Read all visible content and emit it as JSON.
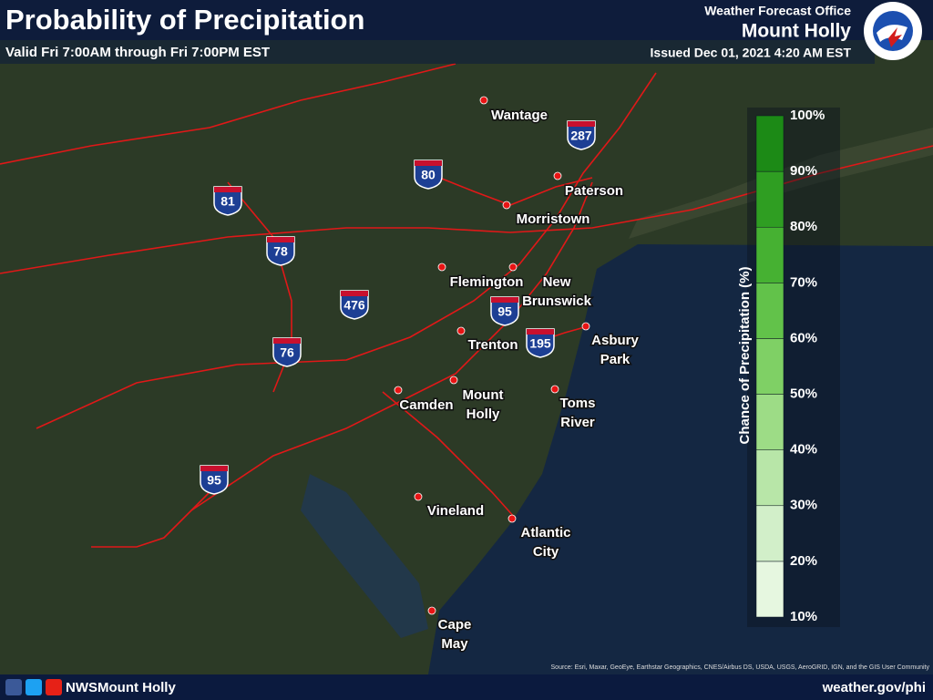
{
  "header": {
    "title": "Probability of Precipitation",
    "valid": "Valid Fri 7:00AM through Fri 7:00PM EST",
    "office": "Weather Forecast Office",
    "office_name": "Mount Holly",
    "issued": "Issued Dec 01, 2021 4:20 AM EST"
  },
  "cities": [
    [
      "Wantage"
    ],
    [
      "Paterson"
    ],
    [
      "Morristown"
    ],
    [
      "Flemington"
    ],
    [
      "New",
      "Brunswick"
    ],
    [
      "Trenton"
    ],
    [
      "Asbury",
      "Park"
    ],
    [
      "Mount",
      "Holly"
    ],
    [
      "Camden"
    ],
    [
      "Toms",
      "River"
    ],
    [
      "Vineland"
    ],
    [
      "Atlantic",
      "City"
    ],
    [
      "Cape",
      "May"
    ]
  ],
  "interstates": [
    "287",
    "80",
    "81",
    "78",
    "476",
    "95",
    "195",
    "76",
    "95"
  ],
  "legend": {
    "title": "Chance of Precipitation (%)",
    "labels": [
      "10%",
      "20%",
      "30%",
      "40%",
      "50%",
      "60%",
      "70%",
      "80%",
      "90%",
      "100%"
    ],
    "colors": [
      "#e6f7e0",
      "#d2efc9",
      "#b8e6a8",
      "#9ddc86",
      "#7fd065",
      "#62c24a",
      "#46b132",
      "#2f9e22",
      "#1c8a16"
    ]
  },
  "footer": {
    "social": "NWSMount Holly",
    "url": "weather.gov/phi",
    "source": "Source: Esri, Maxar, GeoEye, Earthstar Geographics, CNES/Airbus DS, USDA, USGS, AeroGRID, IGN, and the GIS User Community"
  }
}
